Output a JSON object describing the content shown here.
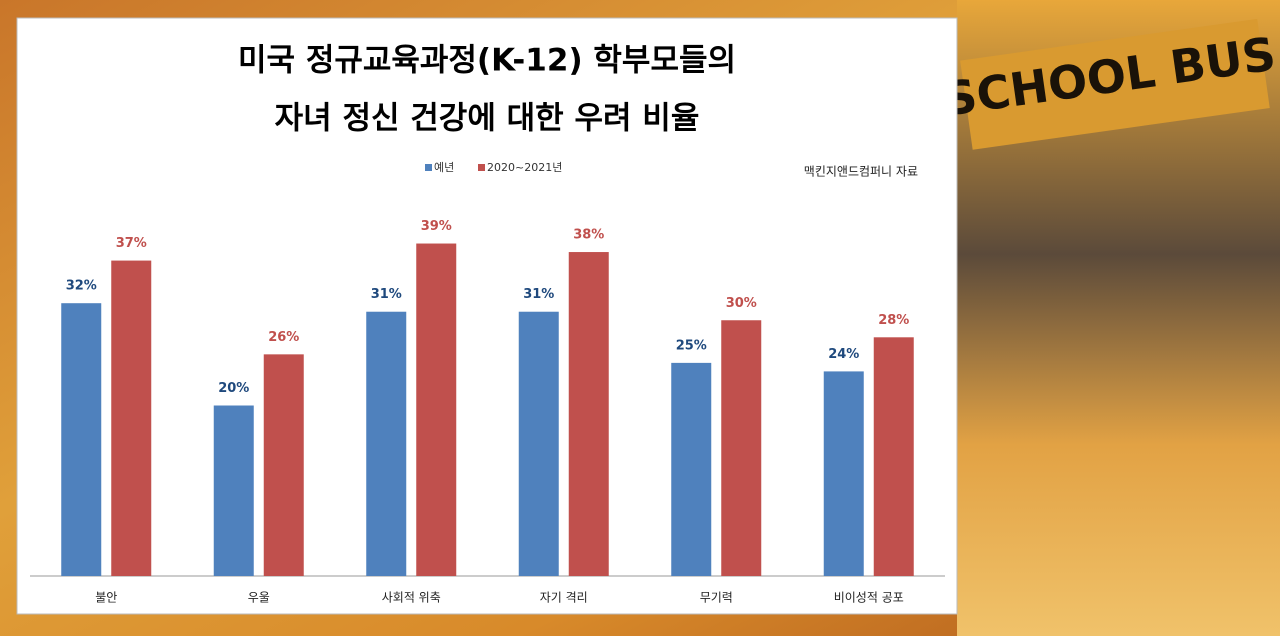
{
  "chart_data": {
    "type": "bar",
    "title": [
      "미국 정규교육과정(K-12) 학부모들의",
      "자녀 정신 건강에 대한 우려 비율"
    ],
    "source": "맥킨지앤드컴퍼니 자료",
    "categories": [
      "불안",
      "우울",
      "사회적 위축",
      "자기 격리",
      "무기력",
      "비이성적 공포"
    ],
    "series": [
      {
        "name": "예년",
        "color": "#4f81bd",
        "label_color": "#1f497d",
        "values": [
          32,
          20,
          31,
          31,
          25,
          24
        ],
        "value_labels": [
          "32%",
          "20%",
          "31%",
          "31%",
          "25%",
          "24%"
        ]
      },
      {
        "name": "2020~2021년",
        "color": "#c0504d",
        "label_color": "#c0504d",
        "values": [
          37,
          26,
          39,
          38,
          30,
          28
        ],
        "value_labels": [
          "37%",
          "26%",
          "39%",
          "38%",
          "30%",
          "28%"
        ]
      }
    ],
    "ylim": [
      0,
      40
    ],
    "legend": "top"
  }
}
